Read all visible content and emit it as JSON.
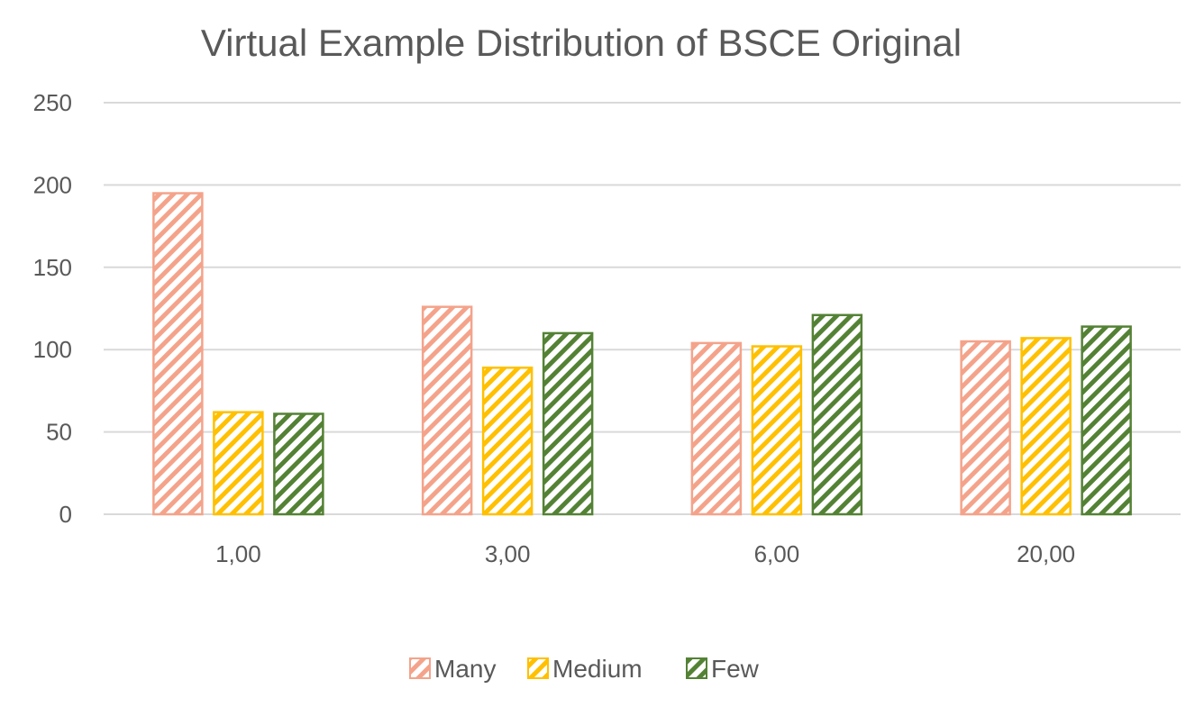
{
  "chart_data": {
    "type": "bar",
    "title": "Virtual Example Distribution of BSCE Original",
    "xlabel": "",
    "ylabel": "",
    "categories": [
      "1,00",
      "3,00",
      "6,00",
      "20,00"
    ],
    "series": [
      {
        "name": "Many",
        "values": [
          195,
          126,
          104,
          105
        ],
        "color": "#F4A38A"
      },
      {
        "name": "Medium",
        "values": [
          62,
          89,
          102,
          107
        ],
        "color": "#FFC000"
      },
      {
        "name": "Few",
        "values": [
          61,
          110,
          121,
          114
        ],
        "color": "#548235"
      }
    ],
    "ylim": [
      0,
      250
    ],
    "yticks": [
      0,
      50,
      100,
      150,
      200,
      250
    ],
    "grid": true,
    "legend": "bottom",
    "pattern": "diagonal-hatch"
  }
}
